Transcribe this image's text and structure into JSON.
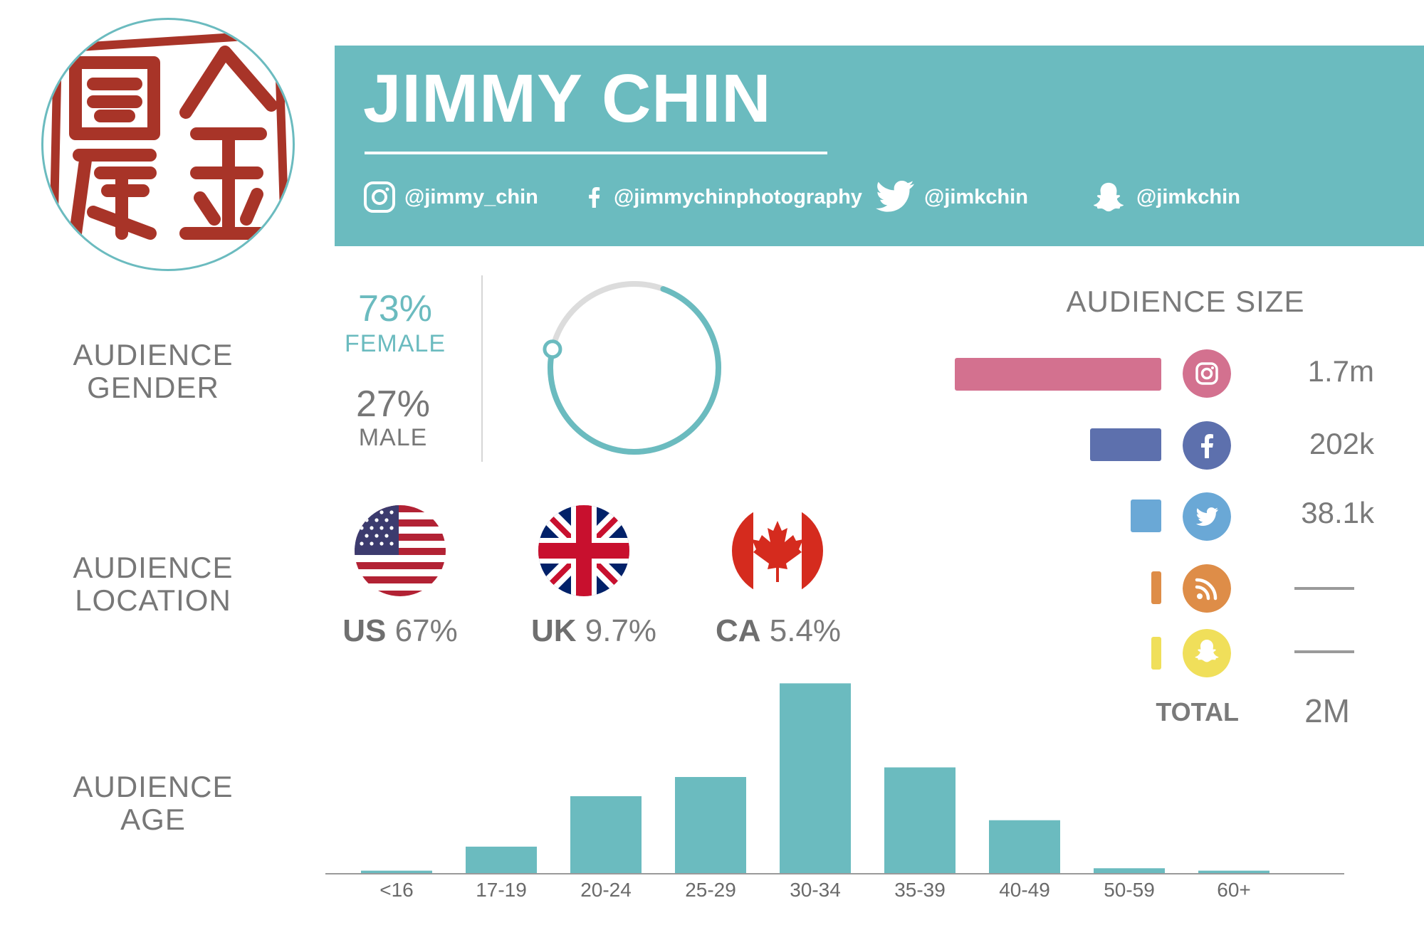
{
  "profile": {
    "name": "JIMMY CHIN",
    "socials": [
      {
        "platform": "instagram",
        "icon": "instagram-icon",
        "handle": "@jimmy_chin"
      },
      {
        "platform": "facebook",
        "icon": "facebook-icon",
        "handle": "@jimmychinphotography"
      },
      {
        "platform": "twitter",
        "icon": "twitter-icon",
        "handle": "@jimkchin"
      },
      {
        "platform": "snapchat",
        "icon": "snapchat-icon",
        "handle": "@jimkchin"
      }
    ],
    "accent_color": "#6bbbbf",
    "seal_color": "#a83428"
  },
  "sections": {
    "gender_label_1": "AUDIENCE",
    "gender_label_2": "GENDER",
    "location_label_1": "AUDIENCE",
    "location_label_2": "LOCATION",
    "age_label_1": "AUDIENCE",
    "age_label_2": "AGE"
  },
  "gender": {
    "female_pct": "73%",
    "female_label": "FEMALE",
    "male_pct": "27%",
    "male_label": "MALE",
    "female_fraction": 0.73
  },
  "location": [
    {
      "code": "US",
      "pct": "67%",
      "flag": "us-flag-icon"
    },
    {
      "code": "UK",
      "pct": "9.7%",
      "flag": "uk-flag-icon"
    },
    {
      "code": "CA",
      "pct": "5.4%",
      "flag": "ca-flag-icon"
    }
  ],
  "audience_size": {
    "title": "AUDIENCE SIZE",
    "rows": [
      {
        "platform": "instagram",
        "icon": "instagram-icon",
        "value": "1.7m",
        "amount": 1700000,
        "color": "#d3718f"
      },
      {
        "platform": "facebook",
        "icon": "facebook-icon",
        "value": "202k",
        "amount": 202000,
        "color": "#5d70ad"
      },
      {
        "platform": "twitter",
        "icon": "twitter-icon",
        "value": "38.1k",
        "amount": 38100,
        "color": "#6aa8d6"
      },
      {
        "platform": "rss",
        "icon": "rss-icon",
        "value": "",
        "amount": 0,
        "color": "#de8d48"
      },
      {
        "platform": "snapchat",
        "icon": "snapchat-icon",
        "value": "",
        "amount": 0,
        "color": "#f0df5a"
      }
    ],
    "total_label": "TOTAL",
    "total_value": "2M"
  },
  "chart_data": {
    "type": "bar",
    "categories": [
      "<16",
      "17-19",
      "20-24",
      "25-29",
      "30-34",
      "35-39",
      "40-49",
      "50-59",
      "60+"
    ],
    "values": [
      0.5,
      5.5,
      16,
      20,
      39.5,
      22,
      11,
      1,
      0.5
    ],
    "ylim": [
      0,
      40
    ],
    "color": "#6bbbbf",
    "grid": false
  }
}
